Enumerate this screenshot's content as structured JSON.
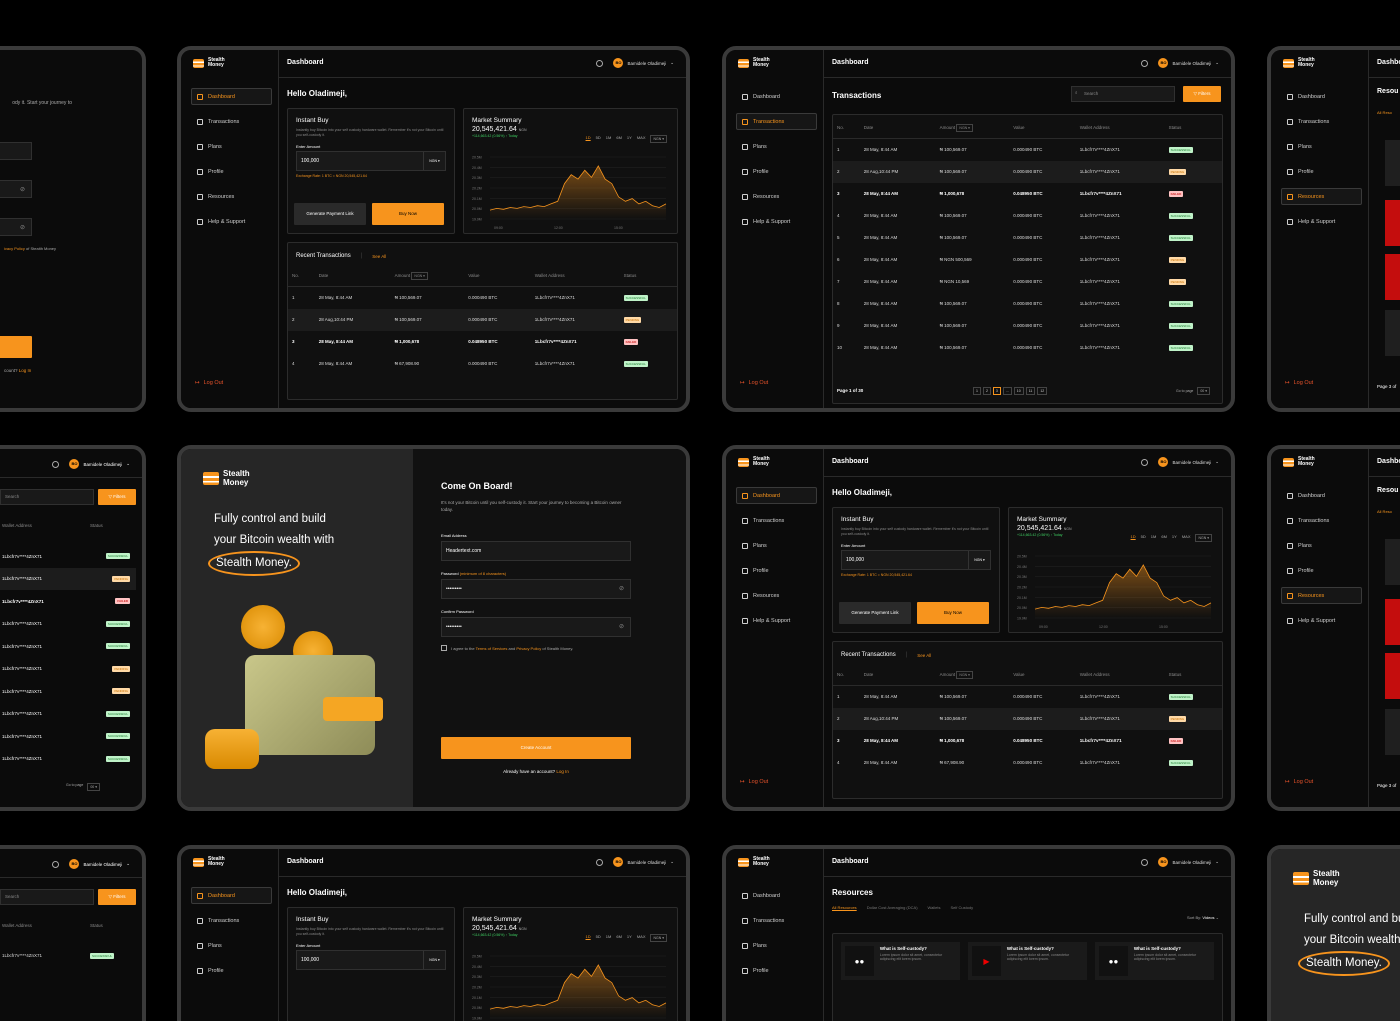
{
  "brand": {
    "name": "Stealth\nMoney",
    "name_line1": "Stealth",
    "name_line2": "Money"
  },
  "topbar": {
    "title": "Dashboard",
    "user_name": "Bamidele Oladimeji",
    "user_initials": "BO"
  },
  "nav": [
    {
      "label": "Dashboard",
      "icon": "grid-icon"
    },
    {
      "label": "Transactions",
      "icon": "list-icon"
    },
    {
      "label": "Plans",
      "icon": "folder-icon"
    },
    {
      "label": "Profile",
      "icon": "user-icon"
    },
    {
      "label": "Resources",
      "icon": "layers-icon"
    },
    {
      "label": "Help & Support",
      "icon": "headset-icon"
    }
  ],
  "logout_label": "Log Out",
  "greeting": "Hello Oladimeji,",
  "instant_buy": {
    "title": "Instant Buy",
    "description": "Instantly buy Bitcoin into your self custody hardware wallet. Remember it's not your Bitcoin until you self-custody it.",
    "amount_label": "Enter Amount",
    "amount_value": "100,000",
    "currency": "NGN",
    "exchange_rate": "Exchange Rate: 1 BTC = NGN 20,545,421.64",
    "generate_link": "Generate Payment Link",
    "buy_now": "Buy Now"
  },
  "market": {
    "title": "Market Summary",
    "price": "20,545,421.64",
    "price_unit": "NGN",
    "change": "+114,663.42 (0.56%)",
    "change_suffix": "Today",
    "ranges": [
      "1D",
      "5D",
      "1M",
      "6M",
      "1Y",
      "MAX"
    ],
    "active_range": "1D",
    "currency": "NGN"
  },
  "chart_data": {
    "type": "area",
    "title": "Market Summary",
    "x_ticks": [
      "09:00",
      "12:00",
      "15:00"
    ],
    "y_ticks": [
      "20.5M",
      "20.4M",
      "20.3M",
      "20.2M",
      "20.1M",
      "20.0M",
      "19.9M"
    ],
    "series": [
      {
        "values": [
          19.95,
          19.97,
          19.96,
          19.98,
          19.97,
          19.99,
          19.98,
          20.0,
          19.99,
          20.02,
          20.05,
          20.25,
          20.35,
          20.3,
          20.4,
          20.32,
          20.45,
          20.3,
          20.25,
          20.1,
          20.05,
          20.08,
          20.02,
          20.05,
          20.0,
          19.98,
          20.02
        ]
      }
    ],
    "color": "#f7941d"
  },
  "recent": {
    "title": "Recent Transactions",
    "see_all": "See All",
    "columns": [
      "No.",
      "Date",
      "Amount",
      "Value",
      "Wallet Address",
      "Status"
    ],
    "amount_currency": "NGN",
    "rows": [
      {
        "no": "1",
        "date": "28 May, 8:44 AM",
        "amount": "₦ 100,569.07",
        "value": "0.000490 BTC",
        "wallet": "1Lbcfr7v****4ZnX71",
        "status": "SUCCESSFUL",
        "cls": "b-success"
      },
      {
        "no": "2",
        "date": "28 Aug,10:44 PM",
        "amount": "₦ 100,569.07",
        "value": "0.000490 BTC",
        "wallet": "1Lbcfr7v****4ZnX71",
        "status": "PENDING",
        "cls": "b-pending"
      },
      {
        "no": "3",
        "date": "28 May, 8:44 AM",
        "amount": "₦ 1,000,678",
        "value": "0.048950 BTC",
        "wallet": "1Lbcfr7v****4ZnX71",
        "status": "FAILED",
        "cls": "b-failed"
      },
      {
        "no": "4",
        "date": "28 May, 8:44 AM",
        "amount": "₦ 67,908.90",
        "value": "0.000490 BTC",
        "wallet": "1Lbcfr7v****4ZnX71",
        "status": "SUCCESSFUL",
        "cls": "b-success"
      }
    ]
  },
  "transactions_page": {
    "title": "Transactions",
    "search_placeholder": "Search",
    "filters": "Filters",
    "page_label": "Page 1 of 30",
    "pages": [
      "1",
      "2",
      "3",
      "...",
      "10",
      "11",
      "12"
    ],
    "active_page": "3",
    "goto_label": "Go to page",
    "goto_value": "00",
    "rows": [
      {
        "no": "1",
        "date": "28 May, 8:44 AM",
        "amount": "₦ 100,569.07",
        "value": "0.000490 BTC",
        "wallet": "1Lbcfr7v****4ZnX71",
        "status": "SUCCESSFUL",
        "cls": "b-success"
      },
      {
        "no": "2",
        "date": "28 Aug,10:44 PM",
        "amount": "₦ 100,569.07",
        "value": "0.000490 BTC",
        "wallet": "1Lbcfr7v****4ZnX71",
        "status": "PENDING",
        "cls": "b-pending"
      },
      {
        "no": "3",
        "date": "28 May, 8:44 AM",
        "amount": "₦ 1,000,678",
        "value": "0.048950 BTC",
        "wallet": "1Lbcfr7v****4ZnX71",
        "status": "FAILED",
        "cls": "b-failed"
      },
      {
        "no": "4",
        "date": "28 May, 8:44 AM",
        "amount": "₦ 100,569.07",
        "value": "0.000490 BTC",
        "wallet": "1Lbcfr7v****4ZnX71",
        "status": "SUCCESSFUL",
        "cls": "b-success"
      },
      {
        "no": "5",
        "date": "28 May, 8:44 AM",
        "amount": "₦ 100,569.07",
        "value": "0.000490 BTC",
        "wallet": "1Lbcfr7v****4ZnX71",
        "status": "SUCCESSFUL",
        "cls": "b-success"
      },
      {
        "no": "6",
        "date": "28 May, 8:44 AM",
        "amount": "₦ NGN 500,569",
        "value": "0.000490 BTC",
        "wallet": "1Lbcfr7v****4ZnX71",
        "status": "PENDING",
        "cls": "b-pending"
      },
      {
        "no": "7",
        "date": "28 May, 8:44 AM",
        "amount": "₦ NGN 10,569",
        "value": "0.000490 BTC",
        "wallet": "1Lbcfr7v****4ZnX71",
        "status": "PENDING",
        "cls": "b-pending"
      },
      {
        "no": "8",
        "date": "28 May, 8:44 AM",
        "amount": "₦ 100,569.07",
        "value": "0.000490 BTC",
        "wallet": "1Lbcfr7v****4ZnX71",
        "status": "SUCCESSFUL",
        "cls": "b-success"
      },
      {
        "no": "9",
        "date": "28 May, 8:44 AM",
        "amount": "₦ 100,569.07",
        "value": "0.000490 BTC",
        "wallet": "1Lbcfr7v****4ZnX71",
        "status": "SUCCESSFUL",
        "cls": "b-success"
      },
      {
        "no": "10",
        "date": "28 May, 8:44 AM",
        "amount": "₦ 100,569.07",
        "value": "0.000490 BTC",
        "wallet": "1Lbcfr7v****4ZnX71",
        "status": "SUCCESSFUL",
        "cls": "b-success"
      }
    ]
  },
  "signup": {
    "hero_line1": "Fully control and build",
    "hero_line2": "your Bitcoin wealth with",
    "hero_line3": "Stealth Money.",
    "title": "Come On Board!",
    "subtitle": "It's not your Bitcoin until you self-custody it. Start your journey to becoming a Bitcoin owner today.",
    "email_label": "Email Address",
    "email_value": "Headertext.com",
    "password_label": "Password",
    "password_hint": "(minimum of 8 characters)",
    "password_value": "•••••••••",
    "confirm_label": "Confirm Password",
    "confirm_value": "•••••••••",
    "terms_prefix": "I agree to the ",
    "terms_link": "Terms of Services",
    "terms_mid": " and ",
    "privacy_link": "Privacy Policy",
    "terms_suffix": " of Stealth Money.",
    "create_btn": "Create Account",
    "have_account": "Already have an account?",
    "login_link": "Log In"
  },
  "resources": {
    "title": "Resources",
    "tabs": [
      "All Resources",
      "Dollar Cost Averaging (DCA)",
      "Wallets",
      "Self Custody"
    ],
    "sort_label": "Sort By:",
    "sort_value": "Videos",
    "cards": [
      {
        "title": "What is Self-custody?",
        "desc": "Lorem ipsum dolor sit amet, consectetur adipiscing elit lorem ipsum.",
        "icon": "medium-icon"
      },
      {
        "title": "What is Self-custody?",
        "desc": "Lorem ipsum dolor sit amet, consectetur adipiscing elit lorem ipsum.",
        "icon": "youtube-icon"
      },
      {
        "title": "What is Self-custody?",
        "desc": "Lorem ipsum dolor sit amet, consectetur adipiscing elit lorem ipsum.",
        "icon": "medium-icon"
      }
    ]
  },
  "partial_login": {
    "line1": "ody it. Start your journey to",
    "policy": "ivacy Policy",
    "policy_suffix": " of Stealth Money",
    "btn": "unt",
    "have": "count?",
    "login": "Log In"
  },
  "partial_resources": {
    "title": "Resou",
    "tab": "All Reso",
    "page": "Page 3 of"
  },
  "partial_tx": {
    "col_wallet": "Wallet Address",
    "col_status": "Status",
    "search": "Search",
    "filters": "Filters",
    "goto": "Go to page",
    "goto_value": "00"
  }
}
